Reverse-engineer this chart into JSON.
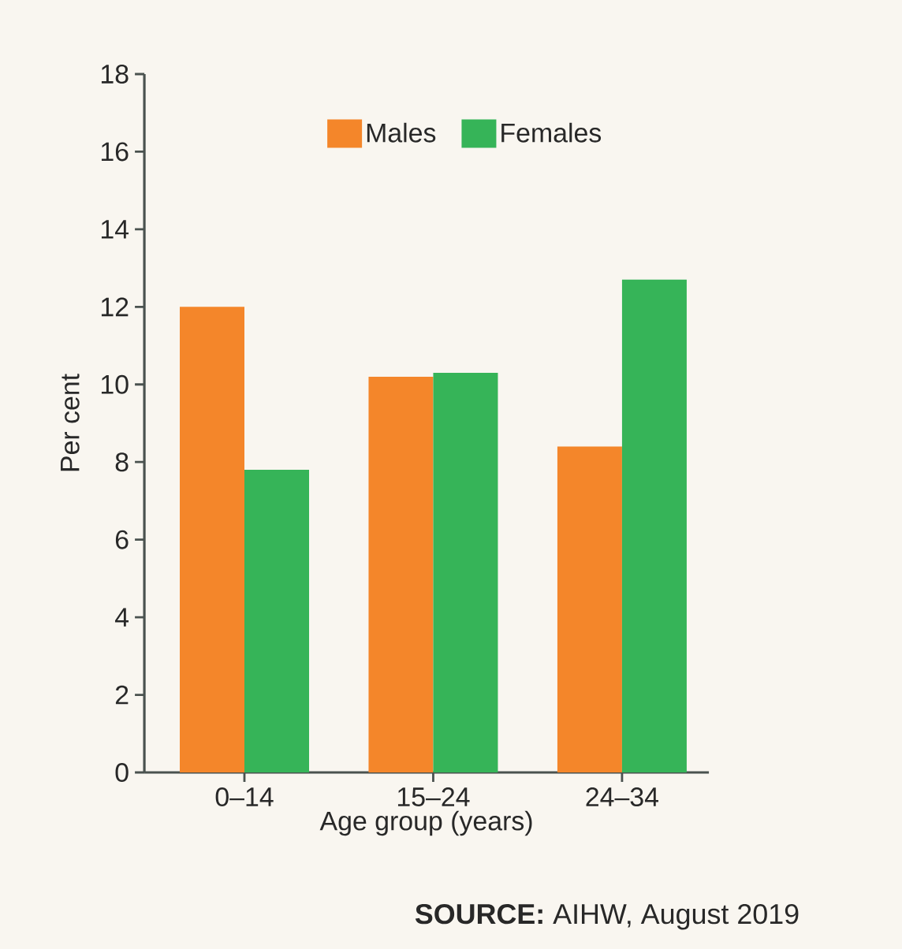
{
  "chart_data": {
    "type": "bar",
    "xlabel": "Age group (years)",
    "ylabel": "Per cent",
    "categories": [
      "0–14",
      "15–24",
      "24–34"
    ],
    "series": [
      {
        "name": "Males",
        "color": "#f4862a",
        "values": [
          12.0,
          10.2,
          8.4
        ]
      },
      {
        "name": "Females",
        "color": "#36b458",
        "values": [
          7.8,
          10.3,
          12.7
        ]
      }
    ],
    "ylim": [
      0,
      18
    ],
    "yticks": [
      0,
      2,
      4,
      6,
      8,
      10,
      12,
      14,
      16,
      18
    ],
    "grid": false,
    "legend": "top",
    "annotations": [
      "**SOURCE:** AIHW, August 2019"
    ]
  }
}
